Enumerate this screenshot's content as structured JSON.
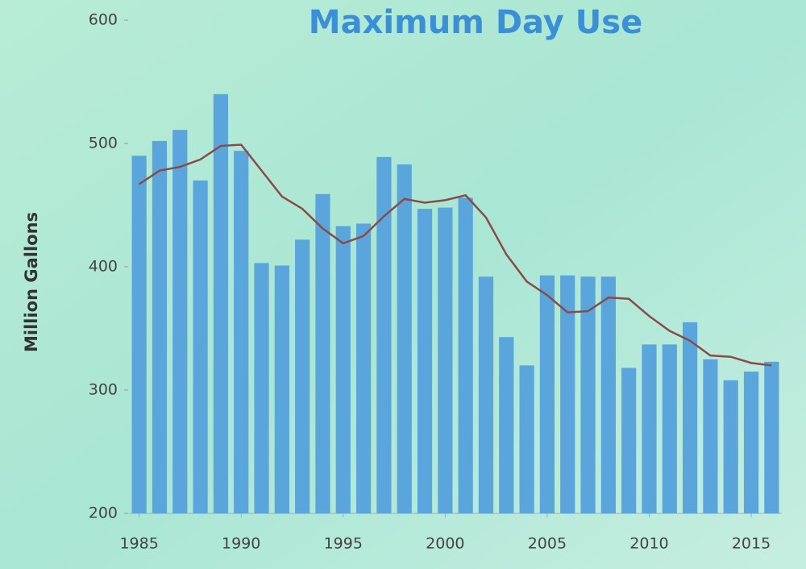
{
  "chart_data": {
    "type": "bar",
    "title": "Maximum Day Use",
    "y_label": "Million Gallons",
    "x": [
      1985,
      1986,
      1987,
      1988,
      1989,
      1990,
      1991,
      1992,
      1993,
      1994,
      1995,
      1996,
      1997,
      1998,
      1999,
      2000,
      2001,
      2002,
      2003,
      2004,
      2005,
      2006,
      2007,
      2008,
      2009,
      2010,
      2011,
      2012,
      2013,
      2014,
      2015,
      2016
    ],
    "series": [
      {
        "type": "bar",
        "color": "#5aa6dc",
        "values": [
          490,
          502,
          511,
          470,
          540,
          494,
          403,
          401,
          422,
          459,
          433,
          435,
          489,
          483,
          447,
          448,
          456,
          392,
          343,
          320,
          393,
          393,
          392,
          392,
          318,
          337,
          337,
          355,
          325,
          308,
          315,
          323
        ]
      },
      {
        "type": "line",
        "color": "#8a4a4a",
        "values": [
          467,
          478,
          481,
          487,
          498,
          499,
          478,
          457,
          447,
          431,
          419,
          425,
          441,
          455,
          452,
          454,
          458,
          440,
          410,
          388,
          377,
          363,
          364,
          375,
          374,
          360,
          348,
          340,
          328,
          327,
          322,
          320
        ]
      }
    ],
    "xlim": [
      1984.5,
      2016.5
    ],
    "xticks": [
      1985,
      1990,
      1995,
      2000,
      2005,
      2010,
      2015
    ],
    "ylim": [
      200,
      600
    ],
    "yticks": [
      200,
      300,
      400,
      500,
      600
    ]
  }
}
